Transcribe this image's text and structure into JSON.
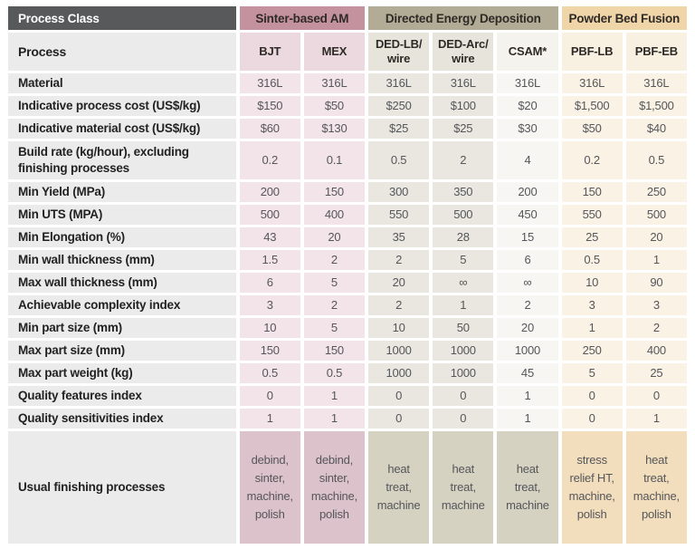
{
  "table": {
    "corner_label": "Process Class",
    "process_label": "Process",
    "groups": [
      {
        "label": "Sinter-based AM",
        "span": 2,
        "tone": "sinter",
        "color": "#C4919E"
      },
      {
        "label": "Directed Energy Deposition",
        "span": 3,
        "tone": "ded",
        "color": "#B2AC96"
      },
      {
        "label": "Powder Bed Fusion",
        "span": 2,
        "tone": "pbf",
        "color": "#F0D5A9"
      }
    ],
    "columns": [
      {
        "label": "BJT",
        "tone": "sinter"
      },
      {
        "label": "MEX",
        "tone": "sinter"
      },
      {
        "label": "DED-LB/ wire",
        "tone": "ded"
      },
      {
        "label": "DED-Arc/ wire",
        "tone": "ded"
      },
      {
        "label": "CSAM*",
        "tone": "csam"
      },
      {
        "label": "PBF-LB",
        "tone": "pbf"
      },
      {
        "label": "PBF-EB",
        "tone": "pbf"
      }
    ],
    "rows": [
      {
        "label": "Material",
        "values": [
          "316L",
          "316L",
          "316L",
          "316L",
          "316L",
          "316L",
          "316L"
        ]
      },
      {
        "label": "Indicative process cost (US$/kg)",
        "values": [
          "$150",
          "$50",
          "$250",
          "$100",
          "$20",
          "$1,500",
          "$1,500"
        ]
      },
      {
        "label": "Indicative material cost (US$/kg)",
        "values": [
          "$60",
          "$130",
          "$25",
          "$25",
          "$30",
          "$50",
          "$40"
        ]
      },
      {
        "label": "Build rate (kg/hour), excluding finishing processes",
        "tall": true,
        "values": [
          "0.2",
          "0.1",
          "0.5",
          "2",
          "4",
          "0.2",
          "0.5"
        ]
      },
      {
        "label": "Min Yield (MPa)",
        "values": [
          "200",
          "150",
          "300",
          "350",
          "200",
          "150",
          "250"
        ]
      },
      {
        "label": "Min UTS (MPA)",
        "values": [
          "500",
          "400",
          "550",
          "500",
          "450",
          "550",
          "500"
        ]
      },
      {
        "label": "Min Elongation (%)",
        "values": [
          "43",
          "20",
          "35",
          "28",
          "15",
          "25",
          "20"
        ]
      },
      {
        "label": "Min wall thickness (mm)",
        "values": [
          "1.5",
          "2",
          "2",
          "5",
          "6",
          "0.5",
          "1"
        ]
      },
      {
        "label": "Max wall thickness (mm)",
        "values": [
          "6",
          "5",
          "20",
          "∞",
          "∞",
          "10",
          "90"
        ]
      },
      {
        "label": "Achievable complexity index",
        "values": [
          "3",
          "2",
          "2",
          "1",
          "2",
          "3",
          "3"
        ]
      },
      {
        "label": "Min part size (mm)",
        "values": [
          "10",
          "5",
          "10",
          "50",
          "20",
          "1",
          "2"
        ]
      },
      {
        "label": "Max part size (mm)",
        "values": [
          "150",
          "150",
          "1000",
          "1000",
          "1000",
          "250",
          "400"
        ]
      },
      {
        "label": "Max part weight (kg)",
        "values": [
          "0.5",
          "0.5",
          "1000",
          "1000",
          "45",
          "5",
          "25"
        ]
      },
      {
        "label": "Quality features index",
        "values": [
          "0",
          "1",
          "0",
          "0",
          "1",
          "0",
          "0"
        ]
      },
      {
        "label": "Quality sensitivities index",
        "values": [
          "1",
          "1",
          "0",
          "0",
          "1",
          "0",
          "1"
        ]
      }
    ],
    "finishing_row": {
      "label": "Usual finishing processes",
      "values": [
        "debind, sinter, machine, polish",
        "debind, sinter, machine, polish",
        "heat treat, machine",
        "heat treat, machine",
        "heat treat, machine",
        "stress relief HT, machine, polish",
        "heat treat, machine, polish"
      ]
    },
    "colors": {
      "header_dark": "#58595B",
      "sinter_band": "#C4919E",
      "ded_band": "#B2AC96",
      "pbf_band": "#F0D5A9",
      "label_column": "#EBEBEB",
      "sinter_cell": "#F2E4E8",
      "ded_cell": "#E9E7E0",
      "csam_cell": "#F7F6F2",
      "pbf_cell": "#FAF3E5",
      "sinter_finishing": "#DCC2CB",
      "ded_finishing": "#D5D2C2",
      "pbf_finishing": "#F2DEBD"
    }
  }
}
